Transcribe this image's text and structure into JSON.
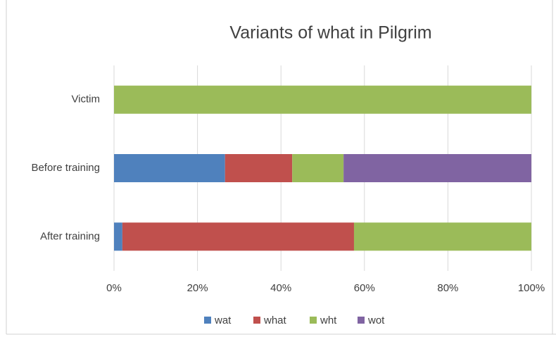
{
  "chart_data": {
    "type": "stacked_barh",
    "title": "Variants of what in Pilgrim",
    "categories": [
      "Victim",
      "Before training",
      "After training"
    ],
    "series": [
      {
        "name": "wat",
        "color": "#4f81bd",
        "values": [
          0,
          26.6,
          2.0
        ]
      },
      {
        "name": "what",
        "color": "#c0504d",
        "values": [
          0,
          16.1,
          55.5
        ]
      },
      {
        "name": "wht",
        "color": "#9bbb59",
        "values": [
          100,
          12.3,
          42.5
        ]
      },
      {
        "name": "wot",
        "color": "#8064a2",
        "values": [
          0,
          45.0,
          0
        ]
      }
    ],
    "xlim": [
      0,
      100
    ],
    "xticks": [
      {
        "value": 0,
        "label": "0%"
      },
      {
        "value": 20,
        "label": "20%"
      },
      {
        "value": 40,
        "label": "40%"
      },
      {
        "value": 60,
        "label": "60%"
      },
      {
        "value": 80,
        "label": "80%"
      },
      {
        "value": 100,
        "label": "100%"
      }
    ],
    "grid": true,
    "legend": "bottom"
  }
}
